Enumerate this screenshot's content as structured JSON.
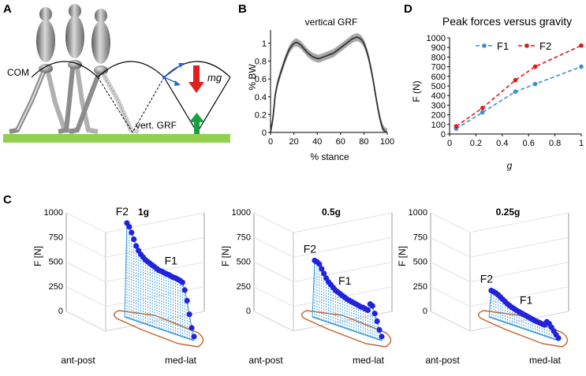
{
  "panels": {
    "A": {
      "letter": "A",
      "com_label": "COM",
      "force_label": "mg",
      "grf_label": "vert. GRF"
    },
    "B": {
      "letter": "B",
      "title": "vertical GRF",
      "ylabel": "% BW",
      "xlabel": "% stance"
    },
    "C": {
      "letter": "C",
      "ylabel": "F [N]",
      "axis_ap": "ant-post",
      "axis_ml": "med-lat"
    },
    "D": {
      "letter": "D",
      "title": "Peak forces versus gravity"
    }
  },
  "colors": {
    "ground": "#92d050",
    "gravity_arrow": "#e02020",
    "grf_arrow": "#1aa040",
    "trajectory_arrow": "#2a5fd6",
    "f1": "#3f8fd0",
    "f2": "#e01818",
    "curve": "#333333",
    "band": "#a8a8a8",
    "points": "#2222dd",
    "stems": "#3a9ad6",
    "footprint": "#c0602a"
  },
  "chart_data": [
    {
      "id": "B",
      "type": "line",
      "title": "vertical GRF",
      "xlabel": "% stance",
      "ylabel": "% BW",
      "xlim": [
        0,
        100
      ],
      "ylim": [
        0,
        1.15
      ],
      "xticks": [
        0,
        20,
        40,
        60,
        80,
        100
      ],
      "yticks": [
        0,
        0.2,
        0.4,
        0.6,
        0.8,
        1
      ],
      "ytick_labels": [
        "0",
        "0.2",
        "0.4",
        "0.6",
        "0.8",
        "1"
      ],
      "grid": false,
      "x": [
        0,
        2,
        4,
        6,
        8,
        10,
        12,
        14,
        16,
        18,
        20,
        22,
        24,
        26,
        28,
        30,
        32,
        34,
        36,
        38,
        40,
        42,
        44,
        46,
        48,
        50,
        52,
        54,
        56,
        58,
        60,
        62,
        64,
        66,
        68,
        70,
        72,
        74,
        76,
        78,
        80,
        82,
        84,
        86,
        88,
        90,
        92,
        94,
        96,
        98,
        100
      ],
      "y": [
        0.0,
        0.15,
        0.42,
        0.55,
        0.64,
        0.72,
        0.8,
        0.87,
        0.93,
        0.97,
        1.0,
        1.01,
        1.0,
        0.98,
        0.95,
        0.92,
        0.89,
        0.87,
        0.85,
        0.84,
        0.83,
        0.83,
        0.84,
        0.85,
        0.86,
        0.87,
        0.88,
        0.89,
        0.91,
        0.93,
        0.95,
        0.97,
        0.99,
        1.01,
        1.03,
        1.05,
        1.06,
        1.07,
        1.06,
        1.04,
        1.0,
        0.93,
        0.84,
        0.72,
        0.58,
        0.42,
        0.27,
        0.14,
        0.05,
        0.01,
        0.0
      ],
      "band": 0.045
    },
    {
      "id": "D",
      "type": "line",
      "title": "Peak forces versus gravity",
      "xlabel": "g",
      "ylabel": "F (N)",
      "xlim": [
        0,
        1
      ],
      "ylim": [
        0,
        1000
      ],
      "xticks": [
        0,
        0.2,
        0.4,
        0.6,
        0.8,
        1
      ],
      "yticks": [
        0,
        100,
        200,
        300,
        400,
        500,
        600,
        700,
        800,
        900,
        1000
      ],
      "legend": "top",
      "grid": false,
      "series": [
        {
          "name": "F1",
          "x": [
            0.05,
            0.25,
            0.5,
            0.65,
            1.0
          ],
          "y": [
            55,
            225,
            440,
            520,
            700
          ]
        },
        {
          "name": "F2",
          "x": [
            0.05,
            0.25,
            0.5,
            0.65,
            1.0
          ],
          "y": [
            80,
            270,
            560,
            700,
            920
          ]
        }
      ]
    },
    {
      "id": "C1",
      "type": "scatter",
      "title": "1g",
      "ylabel": "F [N]",
      "zticks": [
        0,
        250,
        500,
        750,
        1000
      ],
      "peak_labels": [
        "F2",
        "F1"
      ],
      "profile": [
        0,
        960,
        930,
        880,
        820,
        760,
        720,
        690,
        670,
        650,
        640,
        630,
        620,
        610,
        600,
        590,
        590,
        585,
        580,
        580,
        575,
        570,
        570,
        565,
        560,
        550,
        480,
        380,
        250,
        120,
        40
      ]
    },
    {
      "id": "C2",
      "type": "scatter",
      "title": "0.5g",
      "ylabel": "F [N]",
      "zticks": [
        0,
        250,
        500,
        750,
        1000
      ],
      "peak_labels": [
        "F2",
        "F1"
      ],
      "profile": [
        0,
        580,
        575,
        560,
        520,
        480,
        440,
        410,
        390,
        370,
        350,
        340,
        330,
        320,
        310,
        300,
        295,
        290,
        285,
        280,
        275,
        270,
        270,
        265,
        260,
        330,
        320,
        250,
        180,
        100,
        40
      ]
    },
    {
      "id": "C3",
      "type": "scatter",
      "title": "0.25g",
      "ylabel": "F [N]",
      "zticks": [
        0,
        250,
        500,
        750,
        1000
      ],
      "peak_labels": [
        "F2",
        "F1"
      ],
      "profile": [
        0,
        275,
        272,
        265,
        255,
        240,
        225,
        210,
        195,
        185,
        175,
        168,
        160,
        155,
        150,
        145,
        140,
        135,
        130,
        125,
        120,
        118,
        115,
        112,
        110,
        150,
        140,
        110,
        80,
        50,
        25
      ]
    }
  ]
}
